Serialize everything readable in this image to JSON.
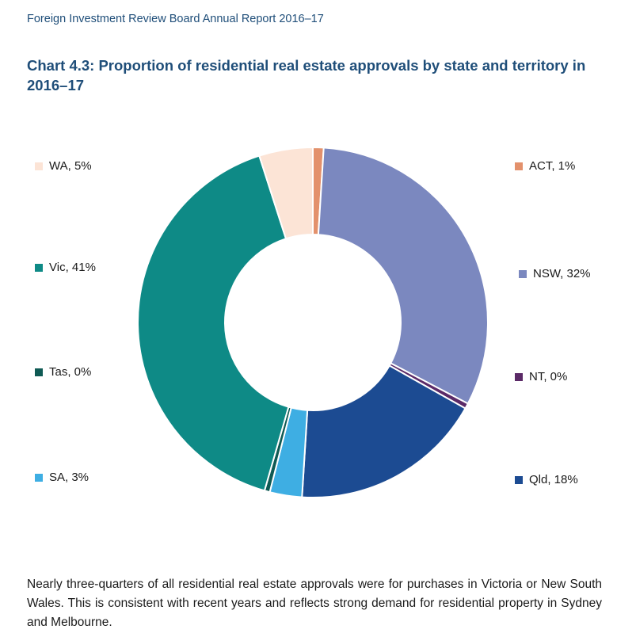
{
  "header": {
    "running_title": "Foreign Investment Review Board Annual Report 2016–17"
  },
  "chart_data": {
    "type": "pie",
    "variant": "donut",
    "title": "Chart 4.3: Proportion of residential real estate approvals by state and territory in 2016–17",
    "unit": "%",
    "slices": [
      {
        "name": "ACT",
        "value": 1,
        "label": "ACT, 1%",
        "color": "#e3916c"
      },
      {
        "name": "NSW",
        "value": 32,
        "label": "NSW, 32%",
        "color": "#7b88bf"
      },
      {
        "name": "NT",
        "value": 0,
        "label": "NT, 0%",
        "color": "#5b2a67"
      },
      {
        "name": "Qld",
        "value": 18,
        "label": "Qld, 18%",
        "color": "#1c4b92"
      },
      {
        "name": "SA",
        "value": 3,
        "label": "SA, 3%",
        "color": "#3eaee3"
      },
      {
        "name": "Tas",
        "value": 0,
        "label": "Tas, 0%",
        "color": "#0f5a54"
      },
      {
        "name": "Vic",
        "value": 41,
        "label": "Vic, 41%",
        "color": "#0e8a86"
      },
      {
        "name": "WA",
        "value": 5,
        "label": "WA, 5%",
        "color": "#fce4d6"
      }
    ],
    "legend": "split-left-right"
  },
  "body": {
    "paragraph": "Nearly three-quarters of all residential real estate approvals were for purchases in Victoria or New South Wales. This is consistent with recent years and reflects strong demand for residential property in Sydney and Melbourne."
  }
}
